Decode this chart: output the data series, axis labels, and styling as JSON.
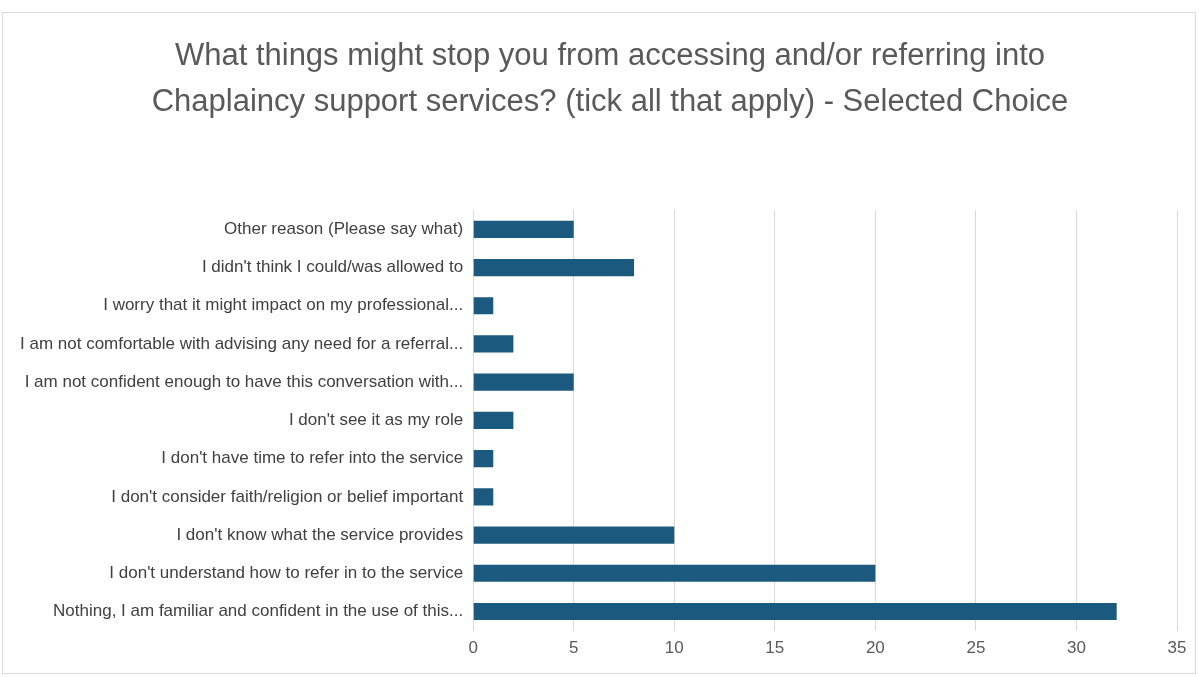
{
  "chart_data": {
    "type": "bar",
    "orientation": "horizontal",
    "title": "What things might stop you from accessing and/or referring into Chaplaincy support services? (tick all that apply) - Selected Choice",
    "categories": [
      "Other reason (Please say what)",
      "I didn't think I could/was allowed to",
      "I worry that it might impact on my professional...",
      "I am not comfortable with advising any need for a referral...",
      "I am not confident enough to have this conversation with...",
      "I don't see it as my role",
      "I don't have time to refer into the service",
      "I don't consider faith/religion or belief important",
      "I don't know what the service provides",
      "I don't understand how to refer in to the service",
      "Nothing, I am familiar and confident in the use of this..."
    ],
    "values": [
      5,
      8,
      1,
      2,
      5,
      2,
      1,
      1,
      10,
      20,
      32
    ],
    "color": "#1b5a7e",
    "xlim": [
      0,
      35
    ],
    "xticks": [
      0,
      5,
      10,
      15,
      20,
      25,
      30,
      35
    ],
    "grid": "x",
    "legend": false
  }
}
